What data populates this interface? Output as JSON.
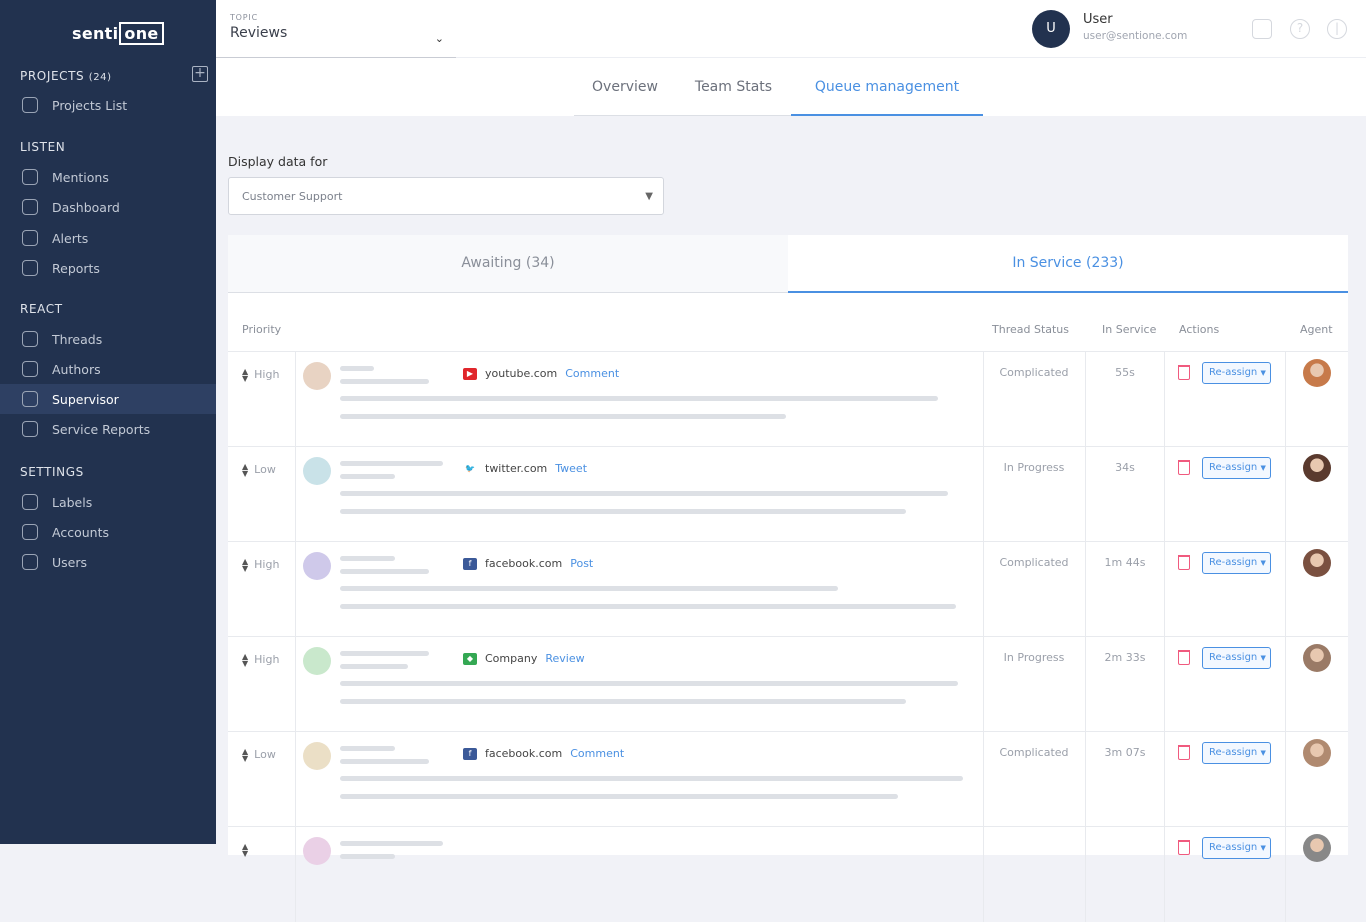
{
  "sidebar": {
    "logo": "senti",
    "logo_box": "one",
    "projects_label": "PROJECTS",
    "projects_count": "(24)",
    "sections": {
      "listen": "LISTEN",
      "react": "REACT",
      "settings": "SETTINGS"
    },
    "items": [
      {
        "label": "Projects List"
      },
      {
        "label": "Mentions"
      },
      {
        "label": "Dashboard"
      },
      {
        "label": "Alerts"
      },
      {
        "label": "Reports"
      },
      {
        "label": "Threads"
      },
      {
        "label": "Authors"
      },
      {
        "label": "Supervisor",
        "active": true
      },
      {
        "label": "Service Reports"
      },
      {
        "label": "Labels"
      },
      {
        "label": "Accounts"
      },
      {
        "label": "Users"
      }
    ]
  },
  "header": {
    "topic_label": "TOPIC",
    "topic_value": "Reviews",
    "user_initial": "U",
    "user_name": "User",
    "user_email": "user@sentione.com"
  },
  "tabs": [
    {
      "label": "Overview"
    },
    {
      "label": "Team Stats"
    },
    {
      "label": "Queue management",
      "active": true
    }
  ],
  "filter": {
    "label": "Display data for",
    "value": "Customer Support"
  },
  "queue_tabs": [
    {
      "label": "Awaiting (34)"
    },
    {
      "label": "In Service (233)",
      "active": true
    }
  ],
  "columns": {
    "priority": "Priority",
    "status": "Thread Status",
    "in_service": "In Service",
    "actions": "Actions",
    "agent": "Agent"
  },
  "reassign_label": "Re-assign",
  "rows": [
    {
      "priority": "High",
      "source": "youtube.com",
      "source_icon": "youtube-icon",
      "type": "Comment",
      "status": "Complicated",
      "time": "55s",
      "avatar_color": "#e8d3c3",
      "agent_color": "#c77a4a"
    },
    {
      "priority": "Low",
      "source": "twitter.com",
      "source_icon": "twitter-icon",
      "type": "Tweet",
      "status": "In Progress",
      "time": "34s",
      "avatar_color": "#c9e2e8",
      "agent_color": "#5a3a2e"
    },
    {
      "priority": "High",
      "source": "facebook.com",
      "source_icon": "facebook-icon",
      "type": "Post",
      "status": "Complicated",
      "time": "1m 44s",
      "avatar_color": "#cfc9ea",
      "agent_color": "#7a5040"
    },
    {
      "priority": "High",
      "source": "Company",
      "source_icon": "google-maps-icon",
      "type": "Review",
      "status": "In Progress",
      "time": "2m 33s",
      "avatar_color": "#c9e8cc",
      "agent_color": "#9a7a66"
    },
    {
      "priority": "Low",
      "source": "facebook.com",
      "source_icon": "facebook-icon",
      "type": "Comment",
      "status": "Complicated",
      "time": "3m 07s",
      "avatar_color": "#ebdfc6",
      "agent_color": "#b08a70"
    },
    {
      "priority": "",
      "source": "",
      "source_icon": "",
      "type": "",
      "status": "",
      "time": "",
      "avatar_color": "#ead0e6",
      "agent_color": "#888888"
    }
  ]
}
